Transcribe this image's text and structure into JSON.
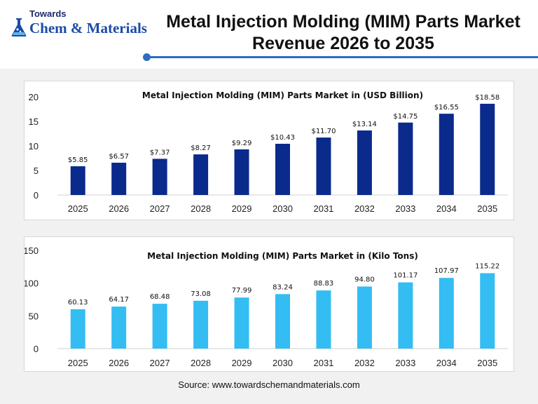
{
  "header": {
    "logo_top": "Towards",
    "logo_main": "Chem & Materials",
    "title_line1": "Metal Injection Molding (MIM) Parts Market",
    "title_line2": "Revenue 2026 to 2035"
  },
  "colors": {
    "revenue_bar": "#0a2a8c",
    "volume_bar": "#33bdf2",
    "accent": "#2f6cc4"
  },
  "chart_data": [
    {
      "type": "bar",
      "title": "Metal Injection Molding (MIM) Parts Market in (USD Billion)",
      "categories": [
        "2025",
        "2026",
        "2027",
        "2028",
        "2029",
        "2030",
        "2031",
        "2032",
        "2033",
        "2034",
        "2035"
      ],
      "values": [
        5.85,
        6.57,
        7.37,
        8.27,
        9.29,
        10.43,
        11.7,
        13.14,
        14.75,
        16.55,
        18.58
      ],
      "data_labels": [
        "$5.85",
        "$6.57",
        "$7.37",
        "$8.27",
        "$9.29",
        "$10.43",
        "$11.70",
        "$13.14",
        "$14.75",
        "$16.55",
        "$18.58"
      ],
      "ylim": [
        0,
        20
      ],
      "yticks": [
        0,
        5,
        10,
        15,
        20
      ],
      "xlabel": "",
      "ylabel": "",
      "grid": false,
      "legend": "none"
    },
    {
      "type": "bar",
      "title": "Metal Injection Molding (MIM) Parts Market in (Kilo Tons)",
      "categories": [
        "2025",
        "2026",
        "2027",
        "2028",
        "2029",
        "2030",
        "2031",
        "2032",
        "2033",
        "2034",
        "2035"
      ],
      "values": [
        60.13,
        64.17,
        68.48,
        73.08,
        77.99,
        83.24,
        88.83,
        94.8,
        101.17,
        107.97,
        115.22
      ],
      "data_labels": [
        "60.13",
        "64.17",
        "68.48",
        "73.08",
        "77.99",
        "83.24",
        "88.83",
        "94.80",
        "101.17",
        "107.97",
        "115.22"
      ],
      "ylim": [
        0,
        150
      ],
      "yticks": [
        0,
        50,
        100,
        150
      ],
      "xlabel": "",
      "ylabel": "",
      "grid": false,
      "legend": "none"
    }
  ],
  "source": "Source: www.towardschemandmaterials.com"
}
